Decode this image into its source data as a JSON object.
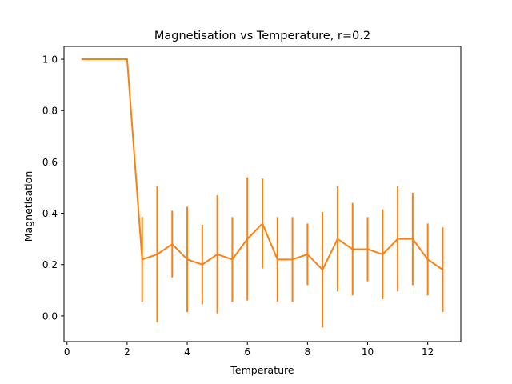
{
  "chart_data": {
    "type": "line",
    "title": "Magnetisation vs Temperature, r=0.2",
    "xlabel": "Temperature",
    "ylabel": "Magnetisation",
    "xlim": [
      -0.1,
      13.1
    ],
    "ylim": [
      -0.1,
      1.05
    ],
    "x_ticks": [
      0,
      2,
      4,
      6,
      8,
      10,
      12
    ],
    "y_ticks": [
      0.0,
      0.2,
      0.4,
      0.6,
      0.8,
      1.0
    ],
    "x_tick_labels": [
      "0",
      "2",
      "4",
      "6",
      "8",
      "10",
      "12"
    ],
    "y_tick_labels": [
      "0.0",
      "0.2",
      "0.4",
      "0.6",
      "0.8",
      "1.0"
    ],
    "grid": false,
    "color": "#ff7f0e",
    "series": [
      {
        "x": [
          0.5,
          1.0,
          1.5,
          2.0,
          2.5,
          3.0,
          3.5,
          4.0,
          4.5,
          5.0,
          5.5,
          6.0,
          6.5,
          7.0,
          7.5,
          8.0,
          8.5,
          9.0,
          9.5,
          10.0,
          10.5,
          11.0,
          11.5,
          12.0,
          12.5
        ],
        "y": [
          1.0,
          1.0,
          1.0,
          1.0,
          0.22,
          0.24,
          0.28,
          0.22,
          0.2,
          0.24,
          0.22,
          0.3,
          0.36,
          0.22,
          0.22,
          0.24,
          0.18,
          0.3,
          0.26,
          0.26,
          0.24,
          0.3,
          0.3,
          0.22,
          0.18
        ],
        "yerr": [
          0.0,
          0.0,
          0.0,
          0.0,
          0.165,
          0.265,
          0.13,
          0.205,
          0.155,
          0.23,
          0.165,
          0.24,
          0.175,
          0.165,
          0.165,
          0.12,
          0.225,
          0.205,
          0.18,
          0.125,
          0.175,
          0.205,
          0.18,
          0.14,
          0.165
        ]
      }
    ]
  }
}
